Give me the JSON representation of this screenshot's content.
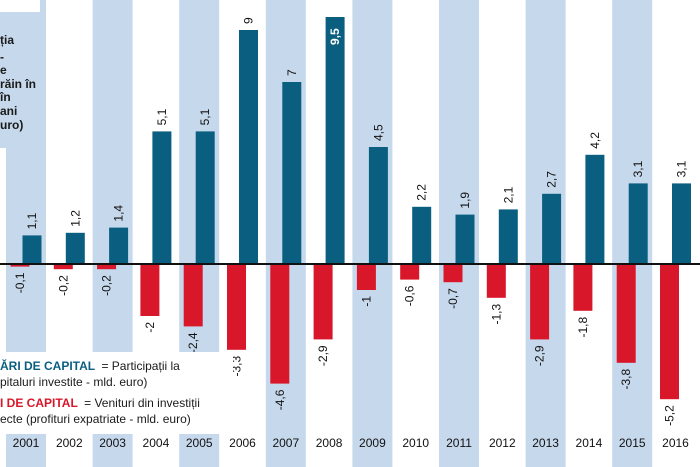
{
  "chart_data": {
    "type": "bar",
    "categories": [
      "2001",
      "2002",
      "2003",
      "2004",
      "2005",
      "2006",
      "2007",
      "2008",
      "2009",
      "2010",
      "2011",
      "2012",
      "2013",
      "2014",
      "2015",
      "2016"
    ],
    "series": [
      {
        "values": [
          1.1,
          1.2,
          1.4,
          5.1,
          5.1,
          9,
          7,
          9.5,
          4.5,
          2.2,
          1.9,
          2.1,
          2.7,
          4.2,
          3.1,
          3.1
        ],
        "labels": [
          "1,1",
          "1,2",
          "1,4",
          "5,1",
          "5,1",
          "9",
          "7",
          "9,5",
          "4,5",
          "2,2",
          "1,9",
          "2,1",
          "2,7",
          "4,2",
          "3,1",
          "3,1"
        ]
      },
      {
        "values": [
          -0.1,
          -0.2,
          -0.2,
          -2,
          -2.4,
          -3.3,
          -4.6,
          -2.9,
          -1,
          -0.6,
          -0.7,
          -1.3,
          -2.9,
          -1.8,
          -3.8,
          -5.2
        ],
        "labels": [
          "-0,1",
          "-0,2",
          "-0,2",
          "-2",
          "-2,4",
          "-3,3",
          "-4,6",
          "-2,9",
          "-1",
          "-0,6",
          "-0,7",
          "-1,3",
          "-2,9",
          "-1,8",
          "-3,8",
          "-5,2"
        ]
      }
    ],
    "ylim": [
      -6,
      10
    ],
    "grid": false,
    "title_fragments": [
      "ția",
      "-",
      "e",
      "răin în",
      "în",
      "ani",
      "uro)"
    ],
    "legend": [
      {
        "key": "ĂRI DE CAPITAL",
        "desc_lines": [
          "= Participații la",
          "pitaluri investite - mld. euro)"
        ]
      },
      {
        "key": "I DE CAPITAL",
        "desc_lines": [
          "= Venituri din investiții",
          "ecte (profituri expatriate - mld. euro)"
        ]
      }
    ]
  },
  "colors": {
    "inflow": "#0a5f80",
    "outflow": "#d8172a",
    "band": "#c6d8ec",
    "axis": "#111111",
    "accent_key": "#0a5f80",
    "outflow_key": "#d8172a"
  }
}
